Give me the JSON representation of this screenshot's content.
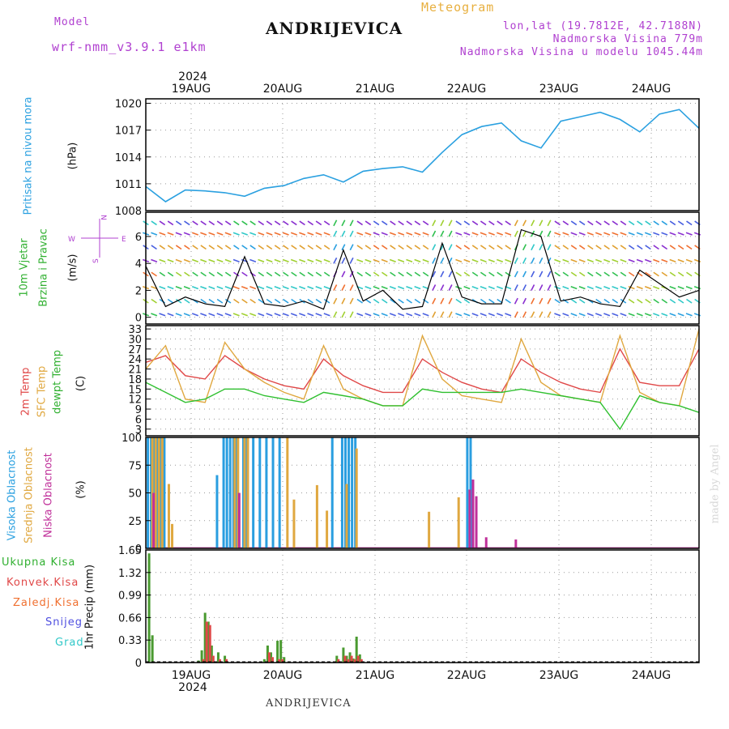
{
  "header": {
    "model_label": "Model",
    "model_name": "wrf-nmm_v3.9.1 e1km",
    "station": "ANDRIJEVICA",
    "meteogram": "Meteogram",
    "lonlat": "lon,lat (19.7812E, 42.7188N)",
    "altitude": "Nadmorska Visina 779m",
    "model_altitude": "Nadmorska Visina u modelu 1045.44m"
  },
  "footer": {
    "station": "ANDRIJEVICA",
    "credit": "made by Angel"
  },
  "time_axis": {
    "year": "2024",
    "days": [
      "19AUG",
      "20AUG",
      "21AUG",
      "22AUG",
      "23AUG",
      "24AUG"
    ]
  },
  "panels": {
    "pressure": {
      "label": "Pritisak na nivou mora",
      "unit": "(hPa)"
    },
    "wind": {
      "label1": "10m Vjetar",
      "label2": "Brzina i Pravac",
      "unit": "(m/s)",
      "compass": {
        "w": "W",
        "e": "E",
        "n": "N",
        "s": "S"
      }
    },
    "temp": {
      "label1": "2m Temp",
      "label2": "SFC Temp",
      "label3": "dewpt Temp",
      "unit": "(C)"
    },
    "cloud": {
      "label1": "Visoka Oblacnost",
      "label2": "Srednja Oblacnost",
      "label3": "Niska Oblacnost",
      "unit": "(%)"
    },
    "precip": {
      "unit": "1hr Precip (mm)",
      "legend": [
        "Ukupna Kisa",
        "Konvek.Kisa",
        "Zaledj.Kisa",
        "Snijeg",
        "Grad"
      ]
    }
  },
  "colors": {
    "pressure": "#2aa0e0",
    "wind_speed": "#000000",
    "wind_gust": "#e05030",
    "t2m": "#e04848",
    "tsfc": "#e0a840",
    "dewpt": "#30c030",
    "cloud_high": "#2a9ee0",
    "cloud_mid": "#e0a840",
    "cloud_low": "#c0309a",
    "rain_total": "#4a9a30",
    "rain_conv": "#e04848",
    "leg_total": "#30b030",
    "leg_conv": "#e04848",
    "leg_frz": "#f07030",
    "leg_snow": "#5050e0",
    "leg_hail": "#30c8c8",
    "model": "#b040d0"
  },
  "chart_data": [
    {
      "type": "line",
      "title": "",
      "ylabel": "Pritisak na nivou mora (hPa)",
      "ylim": [
        1008,
        1020.5
      ],
      "yticks": [
        1008,
        1011,
        1014,
        1017,
        1020
      ],
      "x": [
        0,
        6,
        12,
        18,
        24,
        30,
        36,
        42,
        48,
        54,
        60,
        66,
        72,
        78,
        84,
        90,
        96,
        102,
        108,
        114,
        120,
        126,
        132,
        138,
        144,
        150,
        156,
        162,
        168
      ],
      "series": [
        {
          "values": [
            1010.7,
            1009.0,
            1010.3,
            1010.2,
            1010.0,
            1009.6,
            1010.5,
            1010.8,
            1011.6,
            1012.0,
            1011.2,
            1012.4,
            1012.7,
            1012.9,
            1012.3,
            1014.5,
            1016.5,
            1017.4,
            1017.8,
            1015.8,
            1015.0,
            1018.0,
            1018.5,
            1019.0,
            1018.2,
            1016.8,
            1018.8,
            1019.3,
            1017.2
          ]
        }
      ]
    },
    {
      "type": "line",
      "title": "",
      "ylabel": "10m Vjetar Brzina i Pravac (m/s)",
      "ylim": [
        -0.5,
        7.8
      ],
      "yticks": [
        0,
        2,
        4,
        6
      ],
      "x": [
        0,
        6,
        12,
        18,
        24,
        30,
        36,
        42,
        48,
        54,
        60,
        66,
        72,
        78,
        84,
        90,
        96,
        102,
        108,
        114,
        120,
        126,
        132,
        138,
        144,
        150,
        156,
        162,
        168
      ],
      "series": [
        {
          "values": [
            3.8,
            0.8,
            1.5,
            1.0,
            0.8,
            4.5,
            1.0,
            0.8,
            1.2,
            0.6,
            5.0,
            1.2,
            2.0,
            0.6,
            0.8,
            5.5,
            1.5,
            1.0,
            1.0,
            6.5,
            6.0,
            1.2,
            1.5,
            1.0,
            0.8,
            3.5,
            2.5,
            1.5,
            2.0
          ]
        }
      ]
    },
    {
      "type": "line",
      "title": "",
      "ylabel": "2m Temp / SFC Temp / dewpt Temp (C)",
      "ylim": [
        1,
        34
      ],
      "yticks": [
        3,
        6,
        9,
        12,
        15,
        18,
        21,
        24,
        27,
        30,
        33
      ],
      "x": [
        0,
        6,
        12,
        18,
        24,
        30,
        36,
        42,
        48,
        54,
        60,
        66,
        72,
        78,
        84,
        90,
        96,
        102,
        108,
        114,
        120,
        126,
        132,
        138,
        144,
        150,
        156,
        162,
        168
      ],
      "series": [
        {
          "name": "2m Temp",
          "values": [
            23,
            25,
            19,
            18,
            25,
            21,
            18,
            16,
            15,
            24,
            19,
            16,
            14,
            14,
            24,
            20,
            17,
            15,
            14,
            24,
            20,
            17,
            15,
            14,
            27,
            17,
            16,
            16,
            27
          ]
        },
        {
          "name": "SFC Temp",
          "values": [
            21,
            28,
            12,
            11,
            29,
            21,
            17,
            14,
            12,
            28,
            15,
            12,
            10,
            10,
            31,
            18,
            13,
            12,
            11,
            30,
            17,
            13,
            12,
            11,
            31,
            14,
            11,
            10,
            33
          ]
        },
        {
          "name": "dewpt Temp",
          "values": [
            17,
            14,
            11,
            12,
            15,
            15,
            13,
            12,
            11,
            14,
            13,
            12,
            10,
            10,
            15,
            14,
            14,
            14,
            14,
            15,
            14,
            13,
            12,
            11,
            3,
            13,
            11,
            10,
            8
          ]
        }
      ]
    },
    {
      "type": "bar",
      "title": "",
      "ylabel": "Oblacnost (%)",
      "ylim": [
        0,
        100
      ],
      "yticks": [
        0,
        25,
        50,
        75,
        100
      ],
      "x": [
        1,
        2,
        3,
        4,
        5,
        6,
        7,
        8,
        10,
        22,
        24,
        25,
        26,
        27,
        28,
        30,
        31,
        33,
        35,
        37,
        39,
        41,
        43,
        45,
        52,
        55,
        57,
        60,
        61,
        62,
        63,
        64,
        66,
        68,
        80,
        86,
        95,
        98,
        99,
        100,
        103,
        112
      ],
      "series": [
        {
          "name": "Visoka Oblacnost",
          "values": [
            100,
            100,
            100,
            100,
            100,
            100,
            0,
            0,
            0,
            66,
            100,
            100,
            100,
            100,
            100,
            100,
            100,
            100,
            100,
            100,
            100,
            100,
            0,
            0,
            0,
            0,
            100,
            100,
            100,
            100,
            100,
            100,
            0,
            0,
            0,
            0,
            0,
            100,
            100,
            0,
            0,
            0
          ]
        },
        {
          "name": "Srednja Oblacnost",
          "values": [
            0,
            100,
            100,
            100,
            100,
            0,
            58,
            22,
            0,
            0,
            0,
            0,
            0,
            100,
            100,
            100,
            100,
            0,
            0,
            0,
            0,
            0,
            100,
            44,
            57,
            34,
            0,
            0,
            58,
            0,
            0,
            90,
            0,
            0,
            0,
            33,
            46,
            0,
            0,
            0,
            0,
            0
          ]
        },
        {
          "name": "Niska Oblacnost",
          "values": [
            0,
            50,
            0,
            0,
            0,
            0,
            0,
            0,
            0,
            0,
            0,
            0,
            0,
            0,
            50,
            0,
            0,
            0,
            0,
            0,
            0,
            0,
            0,
            0,
            0,
            0,
            0,
            0,
            0,
            0,
            0,
            0,
            0,
            0,
            0,
            0,
            0,
            53,
            62,
            47,
            10,
            8
          ]
        }
      ]
    },
    {
      "type": "bar",
      "title": "",
      "ylabel": "1hr Precip (mm)",
      "ylim": [
        0,
        1.65
      ],
      "yticks": [
        0,
        0.33,
        0.66,
        0.99,
        1.32,
        1.65
      ],
      "x": [
        1,
        2,
        16,
        17,
        18,
        19,
        20,
        22,
        24,
        36,
        37,
        38,
        40,
        41,
        42,
        58,
        60,
        61,
        62,
        63,
        64,
        65
      ],
      "series": [
        {
          "name": "Ukupna Kisa",
          "values": [
            1.6,
            0.4,
            0.03,
            0.18,
            0.73,
            0.6,
            0.25,
            0.15,
            0.1,
            0.05,
            0.25,
            0.15,
            0.32,
            0.33,
            0.08,
            0.1,
            0.22,
            0.1,
            0.15,
            0.06,
            0.38,
            0.12
          ]
        },
        {
          "name": "Konvek.Kisa",
          "values": [
            0,
            0,
            0,
            0.05,
            0.6,
            0.55,
            0.1,
            0.05,
            0.05,
            0,
            0.15,
            0.08,
            0.05,
            0.05,
            0,
            0.05,
            0.1,
            0.05,
            0.1,
            0.05,
            0.1,
            0.05
          ]
        }
      ]
    }
  ]
}
